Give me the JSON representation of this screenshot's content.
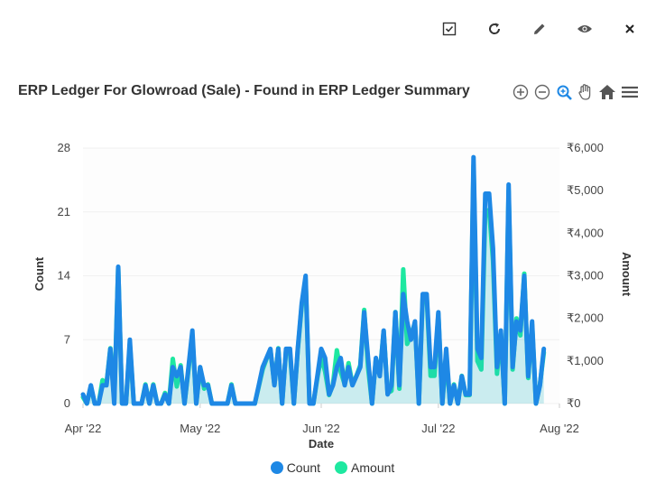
{
  "toolbar": {
    "items": [
      {
        "name": "checkbox-icon"
      },
      {
        "name": "refresh-icon"
      },
      {
        "name": "edit-icon"
      },
      {
        "name": "view-icon"
      },
      {
        "name": "close-icon"
      }
    ]
  },
  "title": "ERP Ledger For Glowroad (Sale) - Found in ERP Ledger Summary",
  "zoom_tools": [
    "zoom-in-icon",
    "zoom-out-icon",
    "selection-zoom-icon",
    "pan-icon",
    "reset-home-icon",
    "menu-icon"
  ],
  "colors": {
    "count": "#1e88e5",
    "amount": "#1ee8a0",
    "grid": "#f0f0f0"
  },
  "chart_data": {
    "type": "area",
    "xlabel": "Date",
    "ylabel_left": "Count",
    "ylabel_right": "Amount",
    "x_ticks": [
      "Apr '22",
      "May '22",
      "Jun '22",
      "Jul '22",
      "Aug '22"
    ],
    "y_left_ticks": [
      "0",
      "7",
      "14",
      "21",
      "28"
    ],
    "y_right_ticks": [
      "₹0",
      "₹1,000",
      "₹2,000",
      "₹3,000",
      "₹4,000",
      "₹5,000",
      "₹6,000"
    ],
    "ylim_left": [
      0,
      28
    ],
    "ylim_right": [
      0,
      6000
    ],
    "xlim": [
      "2022-04-01",
      "2022-08-01"
    ],
    "legend_position": "bottom",
    "series": [
      {
        "name": "Count",
        "points": [
          [
            "2022-04-01",
            1
          ],
          [
            "2022-04-02",
            0
          ],
          [
            "2022-04-03",
            2
          ],
          [
            "2022-04-04",
            0
          ],
          [
            "2022-04-05",
            0
          ],
          [
            "2022-04-06",
            2
          ],
          [
            "2022-04-07",
            2
          ],
          [
            "2022-04-08",
            6
          ],
          [
            "2022-04-09",
            0
          ],
          [
            "2022-04-10",
            15
          ],
          [
            "2022-04-11",
            0
          ],
          [
            "2022-04-12",
            0
          ],
          [
            "2022-04-13",
            7
          ],
          [
            "2022-04-14",
            0
          ],
          [
            "2022-04-15",
            0
          ],
          [
            "2022-04-16",
            0
          ],
          [
            "2022-04-17",
            2
          ],
          [
            "2022-04-18",
            0
          ],
          [
            "2022-04-19",
            2
          ],
          [
            "2022-04-20",
            0
          ],
          [
            "2022-04-21",
            0
          ],
          [
            "2022-04-22",
            1
          ],
          [
            "2022-04-23",
            0
          ],
          [
            "2022-04-24",
            4
          ],
          [
            "2022-04-25",
            3
          ],
          [
            "2022-04-26",
            4
          ],
          [
            "2022-04-27",
            0
          ],
          [
            "2022-04-28",
            4
          ],
          [
            "2022-04-29",
            8
          ],
          [
            "2022-04-30",
            0
          ],
          [
            "2022-05-01",
            4
          ],
          [
            "2022-05-02",
            2
          ],
          [
            "2022-05-03",
            2
          ],
          [
            "2022-05-04",
            0
          ],
          [
            "2022-05-05",
            0
          ],
          [
            "2022-05-06",
            0
          ],
          [
            "2022-05-07",
            0
          ],
          [
            "2022-05-08",
            0
          ],
          [
            "2022-05-09",
            2
          ],
          [
            "2022-05-10",
            0
          ],
          [
            "2022-05-11",
            0
          ],
          [
            "2022-05-12",
            0
          ],
          [
            "2022-05-13",
            0
          ],
          [
            "2022-05-14",
            0
          ],
          [
            "2022-05-15",
            0
          ],
          [
            "2022-05-16",
            2
          ],
          [
            "2022-05-17",
            4
          ],
          [
            "2022-05-18",
            5
          ],
          [
            "2022-05-19",
            6
          ],
          [
            "2022-05-20",
            2
          ],
          [
            "2022-05-21",
            6
          ],
          [
            "2022-05-22",
            0
          ],
          [
            "2022-05-23",
            6
          ],
          [
            "2022-05-24",
            6
          ],
          [
            "2022-05-25",
            0
          ],
          [
            "2022-05-26",
            6
          ],
          [
            "2022-05-27",
            11
          ],
          [
            "2022-05-28",
            14
          ],
          [
            "2022-05-29",
            0
          ],
          [
            "2022-05-30",
            0
          ],
          [
            "2022-05-31",
            3
          ],
          [
            "2022-06-01",
            6
          ],
          [
            "2022-06-02",
            5
          ],
          [
            "2022-06-03",
            1
          ],
          [
            "2022-06-04",
            2
          ],
          [
            "2022-06-05",
            4
          ],
          [
            "2022-06-06",
            5
          ],
          [
            "2022-06-07",
            2
          ],
          [
            "2022-06-08",
            4
          ],
          [
            "2022-06-09",
            2
          ],
          [
            "2022-06-10",
            3
          ],
          [
            "2022-06-11",
            4
          ],
          [
            "2022-06-12",
            10
          ],
          [
            "2022-06-13",
            5
          ],
          [
            "2022-06-14",
            0
          ],
          [
            "2022-06-15",
            5
          ],
          [
            "2022-06-16",
            3
          ],
          [
            "2022-06-17",
            8
          ],
          [
            "2022-06-18",
            1
          ],
          [
            "2022-06-19",
            2
          ],
          [
            "2022-06-20",
            10
          ],
          [
            "2022-06-21",
            2
          ],
          [
            "2022-06-22",
            12
          ],
          [
            "2022-06-23",
            9
          ],
          [
            "2022-06-24",
            7
          ],
          [
            "2022-06-25",
            9
          ],
          [
            "2022-06-26",
            0
          ],
          [
            "2022-06-27",
            12
          ],
          [
            "2022-06-28",
            12
          ],
          [
            "2022-06-29",
            4
          ],
          [
            "2022-06-30",
            4
          ],
          [
            "2022-07-01",
            10
          ],
          [
            "2022-07-02",
            0
          ],
          [
            "2022-07-03",
            6
          ],
          [
            "2022-07-04",
            0
          ],
          [
            "2022-07-05",
            2
          ],
          [
            "2022-07-06",
            0
          ],
          [
            "2022-07-07",
            3
          ],
          [
            "2022-07-08",
            1
          ],
          [
            "2022-07-09",
            1
          ],
          [
            "2022-07-10",
            27
          ],
          [
            "2022-07-11",
            6
          ],
          [
            "2022-07-12",
            5
          ],
          [
            "2022-07-13",
            23
          ],
          [
            "2022-07-14",
            23
          ],
          [
            "2022-07-15",
            17
          ],
          [
            "2022-07-16",
            4
          ],
          [
            "2022-07-17",
            8
          ],
          [
            "2022-07-18",
            0
          ],
          [
            "2022-07-19",
            24
          ],
          [
            "2022-07-20",
            4
          ],
          [
            "2022-07-21",
            9
          ],
          [
            "2022-07-22",
            8
          ],
          [
            "2022-07-23",
            14
          ],
          [
            "2022-07-24",
            3
          ],
          [
            "2022-07-25",
            9
          ],
          [
            "2022-07-26",
            0
          ],
          [
            "2022-07-27",
            2
          ],
          [
            "2022-07-28",
            6
          ]
        ]
      },
      {
        "name": "Amount",
        "points": [
          [
            "2022-04-01",
            150
          ],
          [
            "2022-04-02",
            0
          ],
          [
            "2022-04-03",
            400
          ],
          [
            "2022-04-04",
            0
          ],
          [
            "2022-04-05",
            0
          ],
          [
            "2022-04-06",
            550
          ],
          [
            "2022-04-07",
            450
          ],
          [
            "2022-04-08",
            1300
          ],
          [
            "2022-04-09",
            100
          ],
          [
            "2022-04-10",
            3200
          ],
          [
            "2022-04-11",
            0
          ],
          [
            "2022-04-12",
            0
          ],
          [
            "2022-04-13",
            1400
          ],
          [
            "2022-04-14",
            0
          ],
          [
            "2022-04-15",
            0
          ],
          [
            "2022-04-16",
            0
          ],
          [
            "2022-04-17",
            450
          ],
          [
            "2022-04-18",
            0
          ],
          [
            "2022-04-19",
            450
          ],
          [
            "2022-04-20",
            0
          ],
          [
            "2022-04-21",
            0
          ],
          [
            "2022-04-22",
            250
          ],
          [
            "2022-04-23",
            0
          ],
          [
            "2022-04-24",
            1050
          ],
          [
            "2022-04-25",
            400
          ],
          [
            "2022-04-26",
            900
          ],
          [
            "2022-04-27",
            0
          ],
          [
            "2022-04-28",
            800
          ],
          [
            "2022-04-29",
            1600
          ],
          [
            "2022-04-30",
            0
          ],
          [
            "2022-05-01",
            850
          ],
          [
            "2022-05-02",
            350
          ],
          [
            "2022-05-03",
            450
          ],
          [
            "2022-05-04",
            0
          ],
          [
            "2022-05-05",
            0
          ],
          [
            "2022-05-06",
            0
          ],
          [
            "2022-05-07",
            0
          ],
          [
            "2022-05-08",
            0
          ],
          [
            "2022-05-09",
            450
          ],
          [
            "2022-05-10",
            0
          ],
          [
            "2022-05-11",
            0
          ],
          [
            "2022-05-12",
            0
          ],
          [
            "2022-05-13",
            0
          ],
          [
            "2022-05-14",
            0
          ],
          [
            "2022-05-15",
            0
          ],
          [
            "2022-05-16",
            400
          ],
          [
            "2022-05-17",
            800
          ],
          [
            "2022-05-18",
            1050
          ],
          [
            "2022-05-19",
            1250
          ],
          [
            "2022-05-20",
            450
          ],
          [
            "2022-05-21",
            1300
          ],
          [
            "2022-05-22",
            0
          ],
          [
            "2022-05-23",
            1250
          ],
          [
            "2022-05-24",
            1200
          ],
          [
            "2022-05-25",
            0
          ],
          [
            "2022-05-26",
            1250
          ],
          [
            "2022-05-27",
            2300
          ],
          [
            "2022-05-28",
            2900
          ],
          [
            "2022-05-29",
            0
          ],
          [
            "2022-05-30",
            0
          ],
          [
            "2022-05-31",
            600
          ],
          [
            "2022-06-01",
            1100
          ],
          [
            "2022-06-02",
            750
          ],
          [
            "2022-06-03",
            200
          ],
          [
            "2022-06-04",
            450
          ],
          [
            "2022-06-05",
            1250
          ],
          [
            "2022-06-06",
            750
          ],
          [
            "2022-06-07",
            450
          ],
          [
            "2022-06-08",
            950
          ],
          [
            "2022-06-09",
            450
          ],
          [
            "2022-06-10",
            650
          ],
          [
            "2022-06-11",
            900
          ],
          [
            "2022-06-12",
            2200
          ],
          [
            "2022-06-13",
            850
          ],
          [
            "2022-06-14",
            0
          ],
          [
            "2022-06-15",
            1050
          ],
          [
            "2022-06-16",
            700
          ],
          [
            "2022-06-17",
            1700
          ],
          [
            "2022-06-18",
            250
          ],
          [
            "2022-06-19",
            300
          ],
          [
            "2022-06-20",
            2150
          ],
          [
            "2022-06-21",
            350
          ],
          [
            "2022-06-22",
            3150
          ],
          [
            "2022-06-23",
            1400
          ],
          [
            "2022-06-24",
            1600
          ],
          [
            "2022-06-25",
            1900
          ],
          [
            "2022-06-26",
            0
          ],
          [
            "2022-06-27",
            2500
          ],
          [
            "2022-06-28",
            2500
          ],
          [
            "2022-06-29",
            650
          ],
          [
            "2022-06-30",
            650
          ],
          [
            "2022-07-01",
            2100
          ],
          [
            "2022-07-02",
            0
          ],
          [
            "2022-07-03",
            1100
          ],
          [
            "2022-07-04",
            0
          ],
          [
            "2022-07-05",
            450
          ],
          [
            "2022-07-06",
            0
          ],
          [
            "2022-07-07",
            650
          ],
          [
            "2022-07-08",
            200
          ],
          [
            "2022-07-09",
            200
          ],
          [
            "2022-07-10",
            5600
          ],
          [
            "2022-07-11",
            1000
          ],
          [
            "2022-07-12",
            800
          ],
          [
            "2022-07-13",
            4500
          ],
          [
            "2022-07-14",
            4550
          ],
          [
            "2022-07-15",
            3350
          ],
          [
            "2022-07-16",
            700
          ],
          [
            "2022-07-17",
            1650
          ],
          [
            "2022-07-18",
            0
          ],
          [
            "2022-07-19",
            5000
          ],
          [
            "2022-07-20",
            800
          ],
          [
            "2022-07-21",
            2000
          ],
          [
            "2022-07-22",
            1600
          ],
          [
            "2022-07-23",
            3050
          ],
          [
            "2022-07-24",
            600
          ],
          [
            "2022-07-25",
            1850
          ],
          [
            "2022-07-26",
            0
          ],
          [
            "2022-07-27",
            450
          ],
          [
            "2022-07-28",
            1200
          ]
        ]
      }
    ]
  }
}
